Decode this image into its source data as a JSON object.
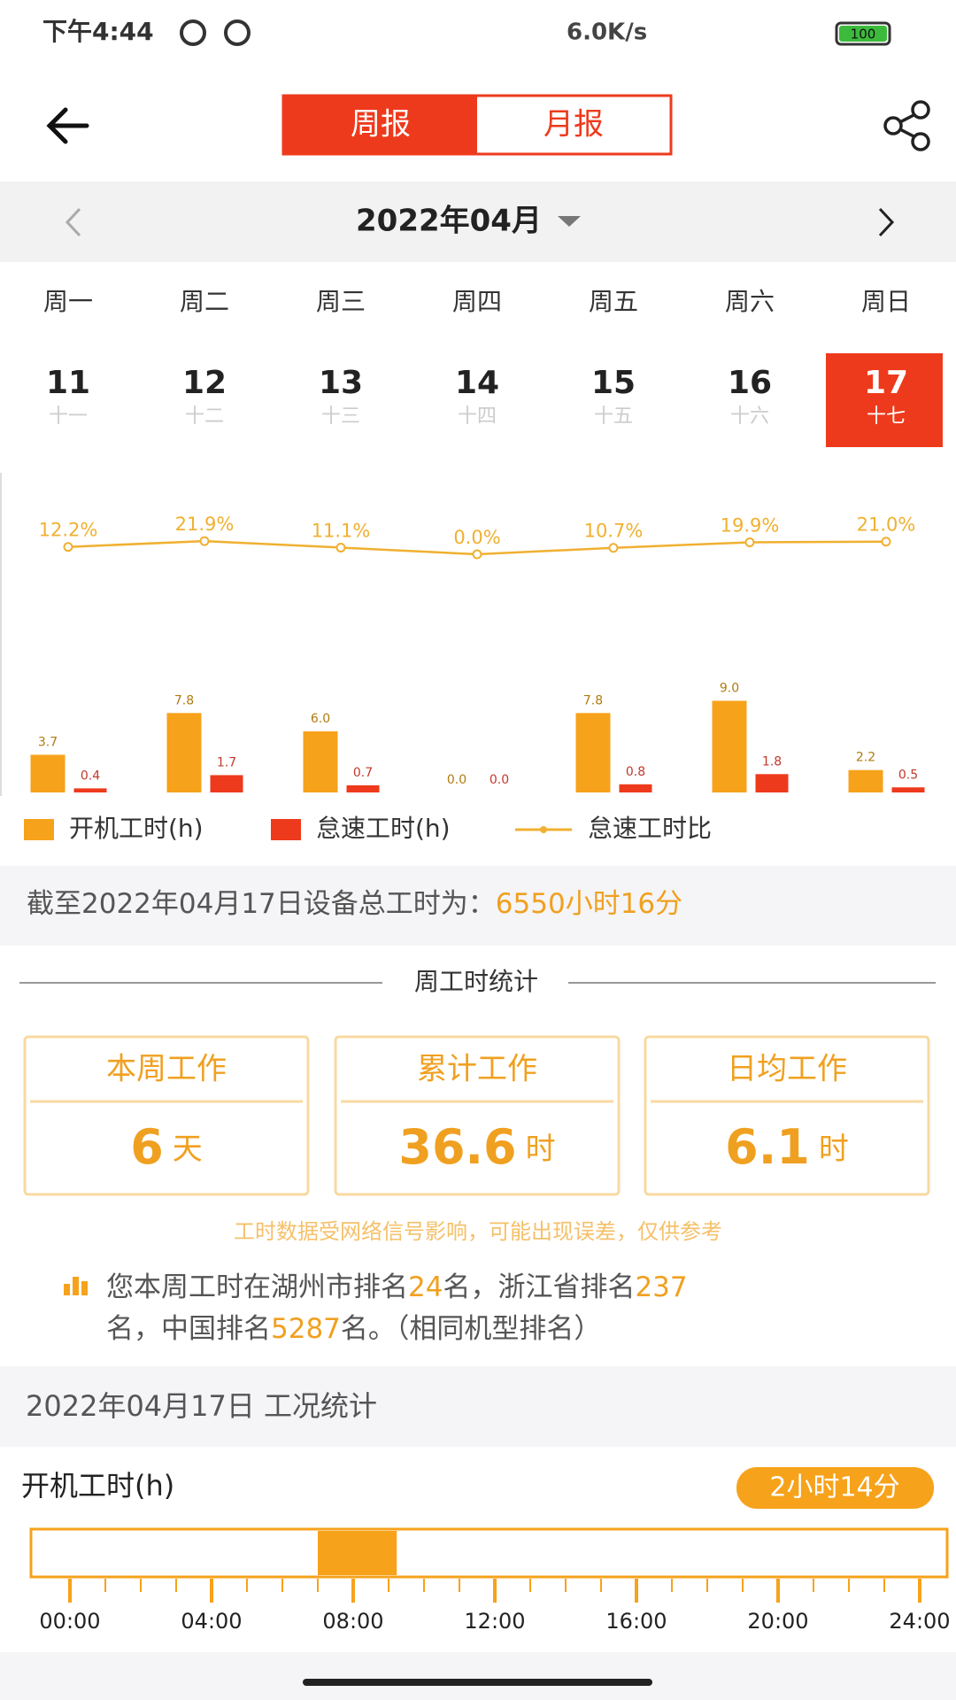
{
  "status_bar": {
    "time": "下午4:44",
    "speed": "6.0K/s",
    "battery": "100"
  },
  "header": {
    "tabs": [
      "周报",
      "月报"
    ]
  },
  "month_nav": {
    "label": "2022年04月"
  },
  "week": {
    "days": [
      {
        "weekday": "周一",
        "date": "11",
        "lunar": "十一"
      },
      {
        "weekday": "周二",
        "date": "12",
        "lunar": "十二"
      },
      {
        "weekday": "周三",
        "date": "13",
        "lunar": "十三"
      },
      {
        "weekday": "周四",
        "date": "14",
        "lunar": "十四"
      },
      {
        "weekday": "周五",
        "date": "15",
        "lunar": "十五"
      },
      {
        "weekday": "周六",
        "date": "16",
        "lunar": "十六"
      },
      {
        "weekday": "周日",
        "date": "17",
        "lunar": "十七"
      }
    ]
  },
  "chart_data": {
    "type": "bar",
    "categories": [
      null,
      null,
      null,
      null,
      null,
      null,
      null
    ],
    "series": [
      {
        "name": "开机工时(h)",
        "type": "bar",
        "color": "#f7a21b",
        "values": [
          3.7,
          7.8,
          6.0,
          0.0,
          7.8,
          9.0,
          2.2
        ],
        "value_labels": [
          "3.7",
          "7.8",
          "6.0",
          "0.0",
          "7.8",
          "9.0",
          "2.2"
        ]
      },
      {
        "name": "怠速工时(h)",
        "type": "bar",
        "color": "#ee3a1c",
        "values": [
          0.4,
          1.7,
          0.7,
          0.0,
          0.8,
          1.8,
          0.5
        ],
        "value_labels": [
          "0.4",
          "1.7",
          "0.7",
          "0.0",
          "0.8",
          "1.8",
          "0.5"
        ]
      },
      {
        "name": "怠速工时比",
        "type": "line",
        "color": "#f0b030",
        "values": [
          12.2,
          21.9,
          11.1,
          0.0,
          10.7,
          19.9,
          21.0
        ],
        "value_labels": [
          "12.2%",
          "21.9%",
          "11.1%",
          "0.0%",
          "10.7%",
          "19.9%",
          "21.0%"
        ]
      }
    ],
    "legend": "bottom"
  },
  "summary": {
    "label": "截至2022年04月17日设备总工时为：",
    "value": "6550小时16分"
  },
  "weekly_stats": {
    "title": "周工时统计",
    "cards": [
      {
        "title": "本周工作",
        "value": 6,
        "unit": "天"
      },
      {
        "title": "累计工作",
        "value": 36.6,
        "unit": "时"
      },
      {
        "title": "日均工作",
        "value": 6.1,
        "unit": "时"
      }
    ],
    "note": "工时数据受网络信号影响，可能出现误差，仅供参考",
    "rank_parts": [
      "您本周工时在湖州市排名",
      24,
      "名，浙江省排名",
      237,
      "名，中国排名",
      5287,
      "名。（相同机型排名）"
    ]
  },
  "daily": {
    "title": "2022年04月17日 工况统计",
    "metric": "开机工时(h)",
    "total": "2小时14分",
    "ticks": [
      "00:00",
      "04:00",
      "08:00",
      "12:00",
      "16:00",
      "20:00",
      "24:00"
    ],
    "segments": [
      {
        "start": 7.0,
        "end": 9.23
      }
    ]
  }
}
